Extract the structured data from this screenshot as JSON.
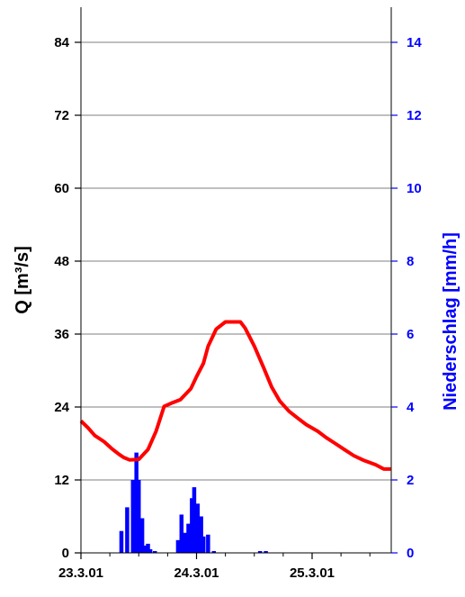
{
  "chart_data": {
    "type": "line",
    "xlabel": "",
    "x_ticks": [
      "23.3.01",
      "24.3.01",
      "25.3.01"
    ],
    "y_left": {
      "label": "Q [m³/s]",
      "ticks": [
        "0",
        "12",
        "24",
        "36",
        "48",
        "60",
        "72",
        "84"
      ],
      "ylim": [
        0,
        90
      ]
    },
    "y_right": {
      "label": "Niederschlag [mm/h]",
      "ticks": [
        "0",
        "2",
        "4",
        "6",
        "8",
        "10",
        "12",
        "14"
      ],
      "ylim": [
        0,
        15
      ],
      "color": "#0000ff"
    },
    "grid": true,
    "series": [
      {
        "kind": "line",
        "axis": "left",
        "color": "#ff0000",
        "x": [
          0.0,
          0.06,
          0.12,
          0.2,
          0.27,
          0.33,
          0.37,
          0.42,
          0.5,
          0.58,
          0.65,
          0.72,
          0.78,
          0.86,
          0.95,
          1.0,
          1.06,
          1.1,
          1.17,
          1.25,
          1.33,
          1.38,
          1.42,
          1.5,
          1.58,
          1.65,
          1.72,
          1.8,
          1.88,
          1.95,
          2.05,
          2.12,
          2.2,
          2.28,
          2.36,
          2.45,
          2.55,
          2.62,
          2.68
        ],
        "values": [
          21.7,
          20.6,
          19.3,
          18.3,
          17.1,
          16.2,
          15.7,
          15.3,
          15.4,
          17.0,
          20.0,
          24.1,
          24.6,
          25.2,
          27.0,
          29.0,
          31.2,
          34.0,
          36.8,
          38.0,
          38.0,
          38.0,
          37.0,
          34.0,
          30.5,
          27.3,
          25.0,
          23.3,
          22.1,
          21.1,
          20.0,
          19.0,
          18.0,
          17.0,
          16.0,
          15.2,
          14.5,
          13.8,
          13.8
        ]
      },
      {
        "kind": "bar",
        "axis": "right",
        "color": "#0000ff",
        "x": [
          0.35,
          0.4,
          0.45,
          0.48,
          0.5,
          0.53,
          0.56,
          0.58,
          0.6,
          0.64,
          0.84,
          0.87,
          0.9,
          0.93,
          0.96,
          0.98,
          1.01,
          1.04,
          1.06,
          1.1,
          1.15,
          1.55,
          1.6
        ],
        "values": [
          0.6,
          1.25,
          2.0,
          2.75,
          2.0,
          0.95,
          0.2,
          0.25,
          0.1,
          0.05,
          0.35,
          1.05,
          0.55,
          0.8,
          1.5,
          1.8,
          1.35,
          1.0,
          0.45,
          0.5,
          0.05,
          0.05,
          0.05
        ]
      }
    ]
  }
}
